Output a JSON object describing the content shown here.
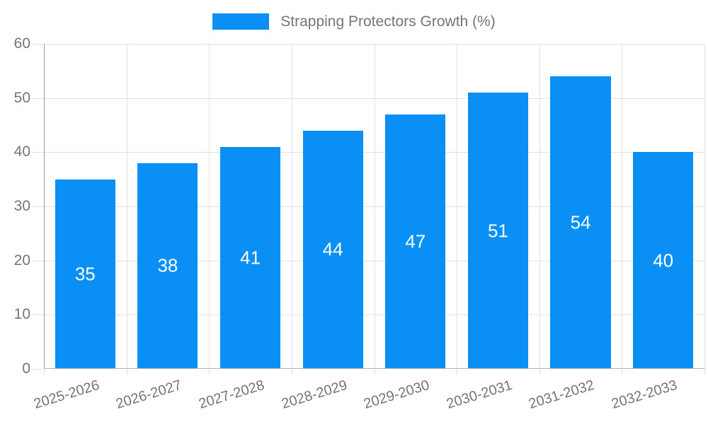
{
  "page": {
    "background": "#ffffff"
  },
  "legend": {
    "label": "Strapping Protectors Growth (%)"
  },
  "colors": {
    "bar": "#0a90f5",
    "bar_value_text": "#ffffff",
    "grid": "#e2e2e2",
    "y_axis_line": "#9e9e9e",
    "x_axis_line": "#b3b3b3",
    "tick_text": "#757575",
    "legend_text": "#757575",
    "background": "#ffffff"
  },
  "chart_data": {
    "type": "bar",
    "title": "Strapping Protectors Growth (%)",
    "categories": [
      "2025-2026",
      "2026-2027",
      "2027-2028",
      "2028-2029",
      "2029-2030",
      "2030-2031",
      "2031-2032",
      "2032-2033"
    ],
    "values": [
      35,
      38,
      41,
      44,
      47,
      51,
      54,
      40
    ],
    "xlabel": "",
    "ylabel": "",
    "ylim": [
      0,
      60
    ],
    "yticks": [
      0,
      10,
      20,
      30,
      40,
      50,
      60
    ],
    "grid": true,
    "legend_position": "top",
    "bar_value_labels": true
  }
}
